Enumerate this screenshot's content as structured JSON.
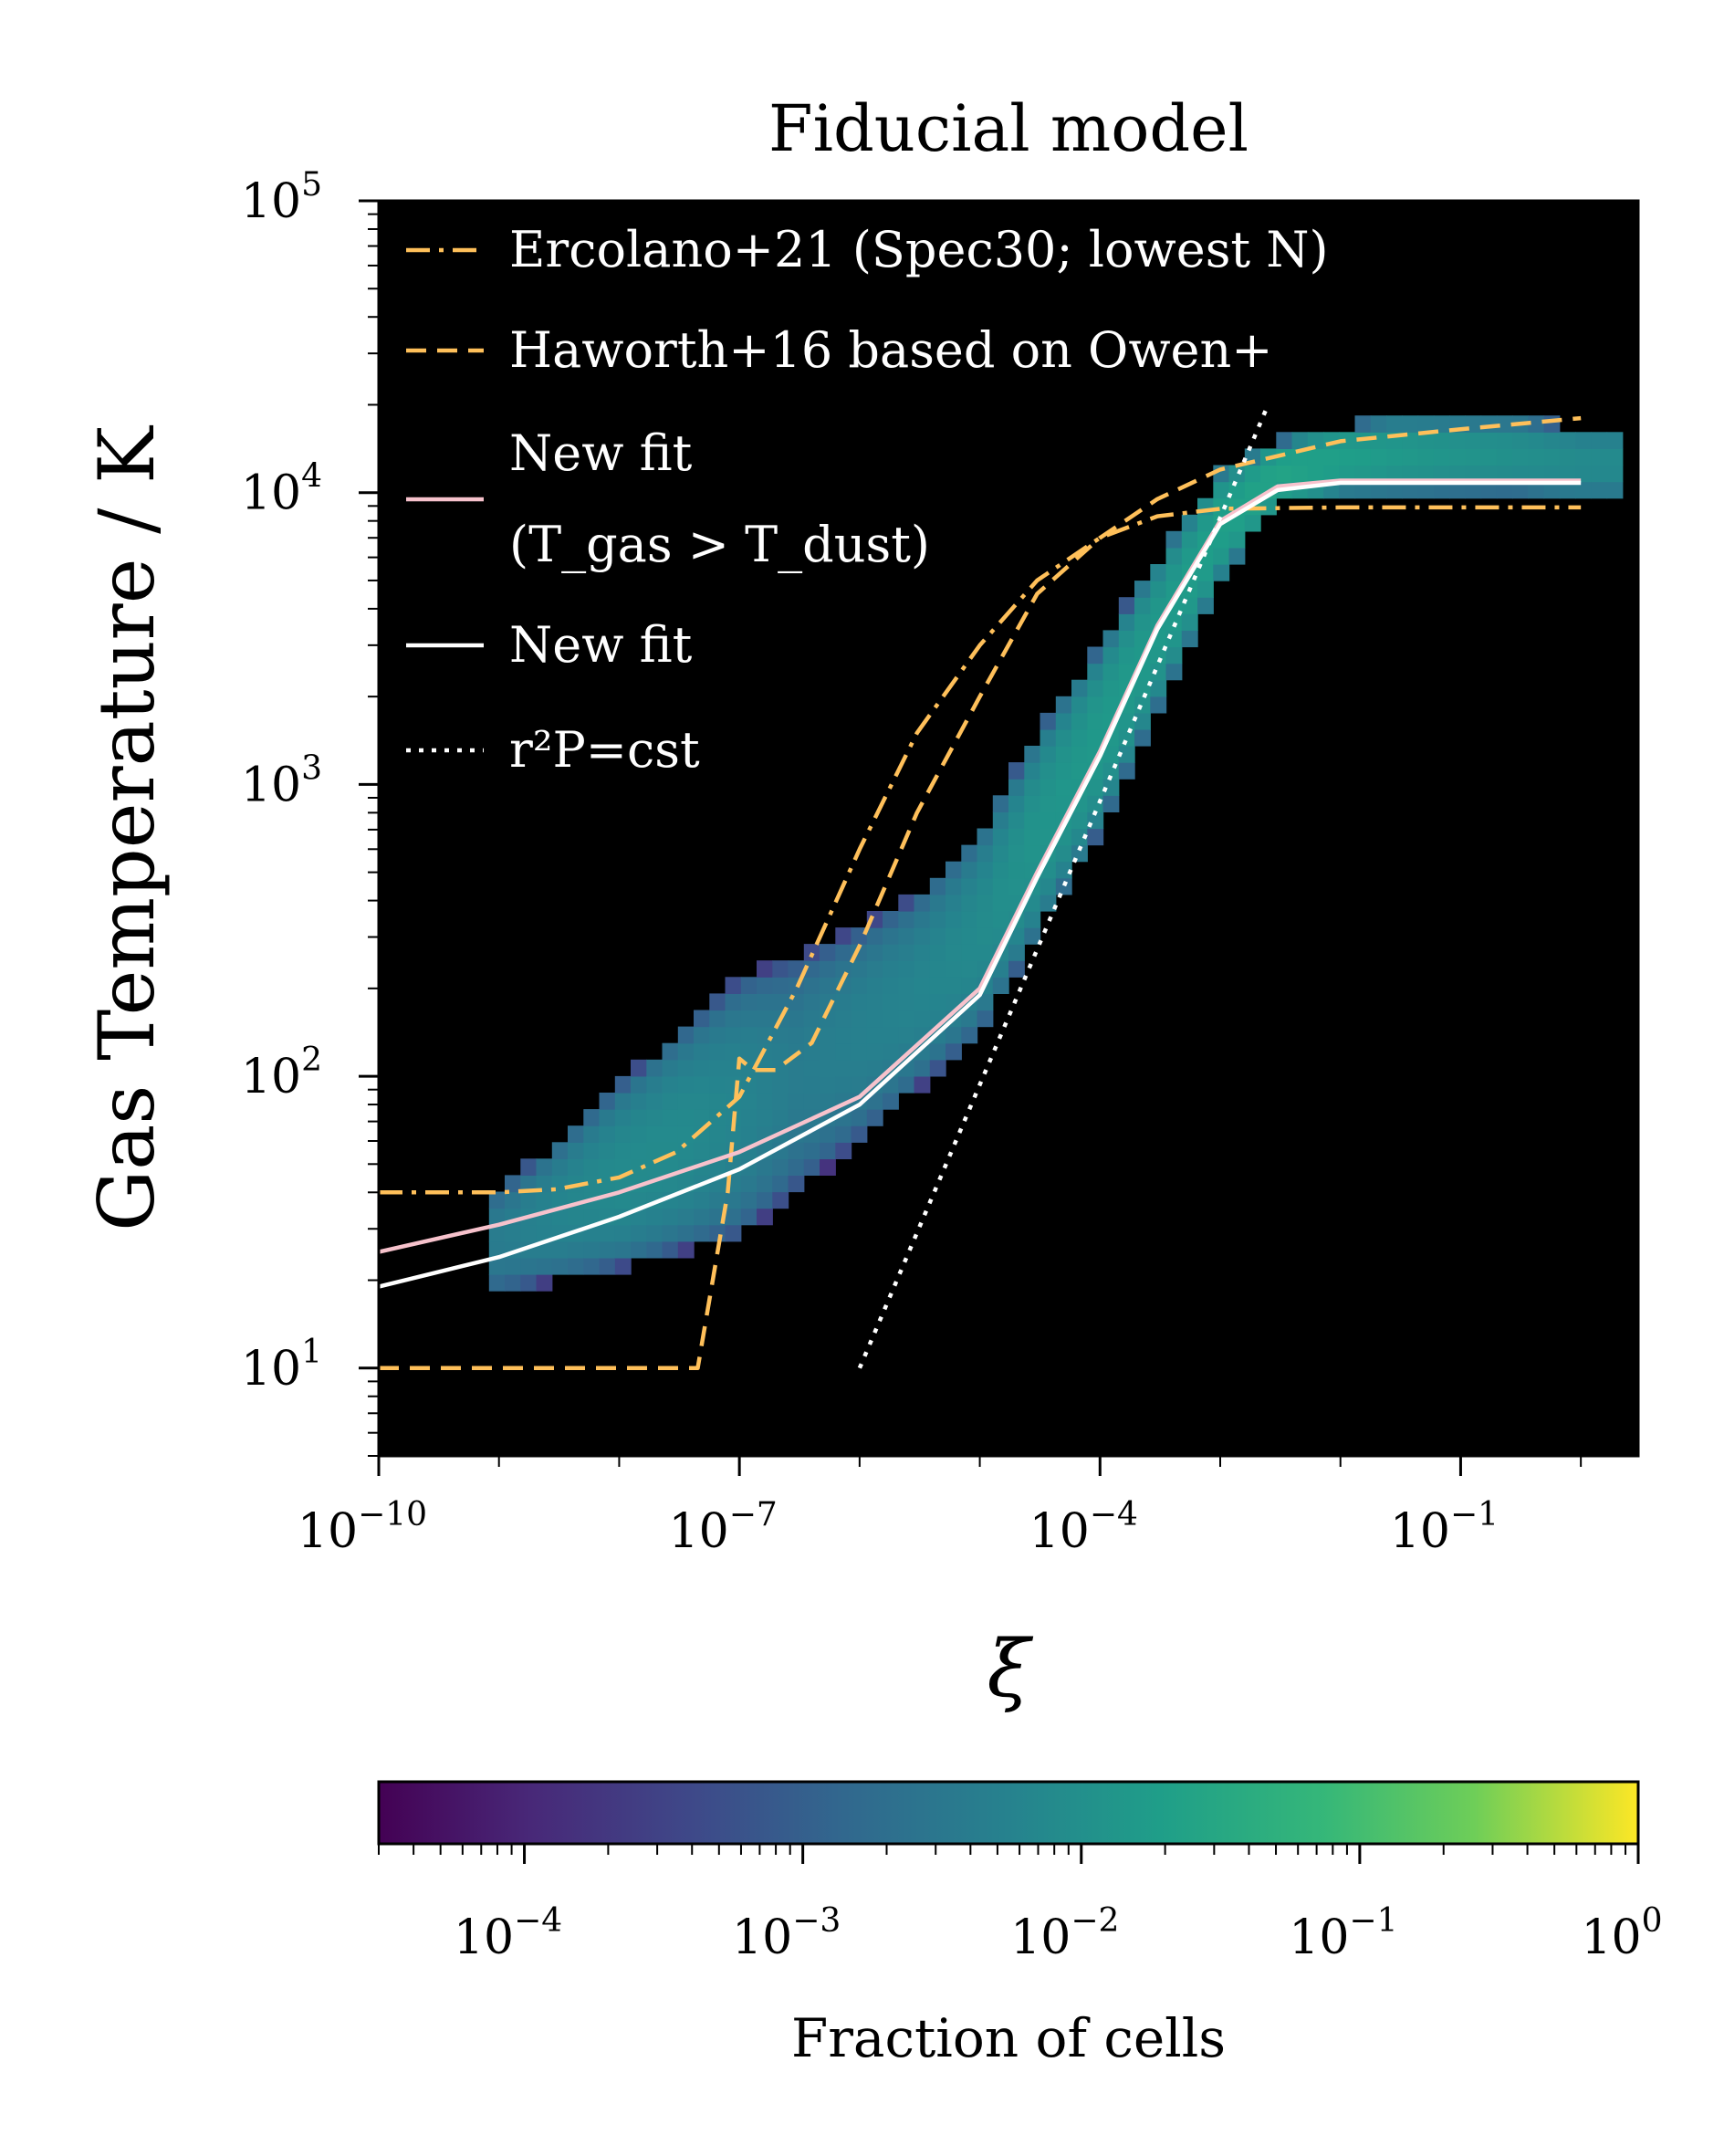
{
  "chart_data": {
    "type": "heatmap",
    "title": "Fiducial model",
    "xlabel": "ξ",
    "ylabel": "Gas Temperature / K",
    "xscale": "log",
    "yscale": "log",
    "xlim": [
      1e-10,
      3.0
    ],
    "ylim": [
      5,
      100000
    ],
    "x_ticks": [
      {
        "base": "10",
        "exp": "−10",
        "value": 1e-10
      },
      {
        "base": "10",
        "exp": "−7",
        "value": 1e-07
      },
      {
        "base": "10",
        "exp": "−4",
        "value": 0.0001
      },
      {
        "base": "10",
        "exp": "−1",
        "value": 0.1
      }
    ],
    "y_ticks": [
      {
        "base": "10",
        "exp": "1",
        "value": 10
      },
      {
        "base": "10",
        "exp": "2",
        "value": 100
      },
      {
        "base": "10",
        "exp": "3",
        "value": 1000
      },
      {
        "base": "10",
        "exp": "4",
        "value": 10000
      },
      {
        "base": "10",
        "exp": "5",
        "value": 100000
      }
    ],
    "background": "#000000",
    "colormap": "viridis",
    "colorbar": {
      "label": "Fraction of cells",
      "scale": "log",
      "range": [
        3e-05,
        1
      ],
      "ticks": [
        {
          "base": "10",
          "exp": "−4",
          "value": 0.0001
        },
        {
          "base": "10",
          "exp": "−3",
          "value": 0.001
        },
        {
          "base": "10",
          "exp": "−2",
          "value": 0.01
        },
        {
          "base": "10",
          "exp": "−1",
          "value": 0.1
        },
        {
          "base": "10",
          "exp": "0",
          "value": 1
        }
      ]
    },
    "density_band": [
      {
        "xi": 1e-09,
        "tlo": 18,
        "thi": 42,
        "frac": 0.004
      },
      {
        "xi": 3e-09,
        "tlo": 20,
        "thi": 60,
        "frac": 0.006
      },
      {
        "xi": 1e-08,
        "tlo": 22,
        "thi": 95,
        "frac": 0.008
      },
      {
        "xi": 3e-08,
        "tlo": 25,
        "thi": 140,
        "frac": 0.008
      },
      {
        "xi": 1e-07,
        "tlo": 28,
        "thi": 220,
        "frac": 0.006
      },
      {
        "xi": 3e-07,
        "tlo": 40,
        "thi": 260,
        "frac": 0.004
      },
      {
        "xi": 1e-06,
        "tlo": 60,
        "thi": 330,
        "frac": 0.005
      },
      {
        "xi": 3e-06,
        "tlo": 90,
        "thi": 420,
        "frac": 0.006
      },
      {
        "xi": 1e-05,
        "tlo": 140,
        "thi": 700,
        "frac": 0.008
      },
      {
        "xi": 3e-05,
        "tlo": 300,
        "thi": 1500,
        "frac": 0.012
      },
      {
        "xi": 0.0001,
        "tlo": 700,
        "thi": 3000,
        "frac": 0.015
      },
      {
        "xi": 0.0003,
        "tlo": 1800,
        "thi": 6000,
        "frac": 0.015
      },
      {
        "xi": 0.001,
        "tlo": 5000,
        "thi": 12000,
        "frac": 0.02
      },
      {
        "xi": 0.003,
        "tlo": 9000,
        "thi": 15000,
        "frac": 0.025
      },
      {
        "xi": 0.01,
        "tlo": 10000,
        "thi": 17000,
        "frac": 0.02
      },
      {
        "xi": 0.03,
        "tlo": 10000,
        "thi": 18000,
        "frac": 0.015
      },
      {
        "xi": 0.1,
        "tlo": 10000,
        "thi": 18000,
        "frac": 0.012
      },
      {
        "xi": 0.3,
        "tlo": 10000,
        "thi": 18000,
        "frac": 0.01
      },
      {
        "xi": 1.0,
        "tlo": 9500,
        "thi": 17000,
        "frac": 0.008
      }
    ],
    "series": [
      {
        "name": "Ercolano+21 (Spec30; lowest N)",
        "color": "#ffc05a",
        "dash": "dashdot",
        "x": [
          1e-10,
          1e-09,
          3e-09,
          1e-08,
          3e-08,
          1e-07,
          3e-07,
          1e-06,
          3e-06,
          1e-05,
          3e-05,
          0.0001,
          0.0003,
          0.001,
          0.01,
          0.1,
          1.0
        ],
        "y": [
          40,
          40,
          41,
          45,
          55,
          85,
          200,
          600,
          1500,
          3000,
          5000,
          7000,
          8300,
          8800,
          8900,
          8900,
          8900
        ]
      },
      {
        "name": "Haworth+16 based on Owen+",
        "color": "#ffc05a",
        "dash": "dashed",
        "x": [
          1e-10,
          4.5e-08,
          8e-08,
          1e-07,
          1.3e-07,
          2e-07,
          4e-07,
          1e-06,
          3e-06,
          1e-05,
          3e-05,
          0.0001,
          0.0003,
          0.001,
          0.01,
          0.1,
          1.0
        ],
        "y": [
          10,
          10,
          40,
          115,
          105,
          105,
          130,
          280,
          800,
          2000,
          4500,
          7000,
          9500,
          12000,
          15000,
          16500,
          18000
        ]
      },
      {
        "name": "New fit (T_gas > T_dust)",
        "color": "#f7c2cc",
        "dash": "solid",
        "x": [
          1e-10,
          1e-09,
          1e-08,
          1e-07,
          1e-06,
          1e-05,
          3e-05,
          0.0001,
          0.0003,
          0.001,
          0.003,
          0.01,
          0.1,
          1.0
        ],
        "y": [
          25,
          31,
          40,
          55,
          85,
          200,
          500,
          1300,
          3500,
          8000,
          10500,
          11000,
          11000,
          11000
        ]
      },
      {
        "name": "New fit",
        "color": "#ffffff",
        "dash": "solid",
        "x": [
          1e-10,
          1e-09,
          1e-08,
          1e-07,
          1e-06,
          1e-05,
          3e-05,
          0.0001,
          0.0003,
          0.001,
          0.003,
          0.01,
          0.1,
          1.0
        ],
        "y": [
          19,
          24,
          33,
          48,
          80,
          190,
          480,
          1250,
          3400,
          7800,
          10200,
          10800,
          10800,
          10800
        ]
      },
      {
        "name": "r²P=cst",
        "color": "#ffffff",
        "dash": "dotted",
        "x": [
          1e-06,
          0.0025
        ],
        "y": [
          10,
          20000
        ]
      }
    ],
    "legend": {
      "placement": "upper-left",
      "entries": [
        {
          "lines": [
            "Ercolano+21 (Spec30; lowest N)"
          ],
          "color": "#ffc05a",
          "dash": "dashdot"
        },
        {
          "lines": [
            "Haworth+16 based on Owen+"
          ],
          "color": "#ffc05a",
          "dash": "dashed"
        },
        {
          "lines": [
            "New fit",
            "(T_gas > T_dust)"
          ],
          "color": "#f7c2cc",
          "dash": "solid"
        },
        {
          "lines": [
            "New fit"
          ],
          "color": "#ffffff",
          "dash": "solid"
        },
        {
          "lines": [
            "r²P=cst"
          ],
          "color": "#ffffff",
          "dash": "dotted"
        }
      ]
    }
  }
}
